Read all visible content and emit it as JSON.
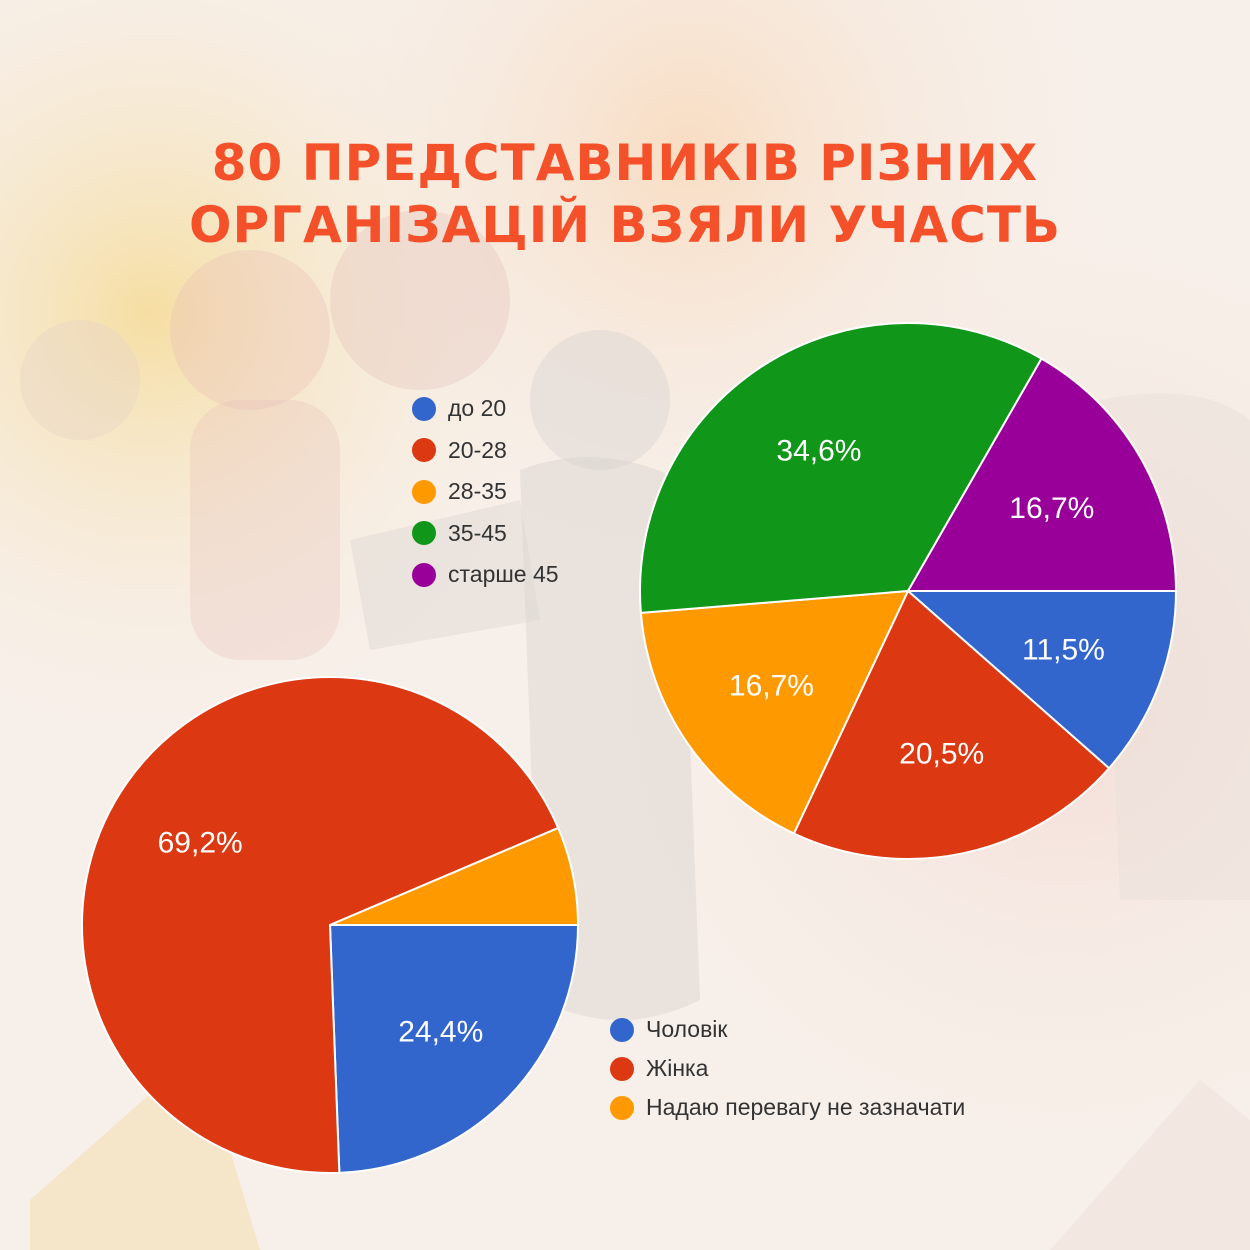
{
  "title": {
    "line1": "80 ПРЕДСТАВНИКІВ РІЗНИХ",
    "line2": "ОРГАНІЗАЦІЙ ВЗЯЛИ УЧАСТЬ"
  },
  "chart_data": [
    {
      "type": "pie",
      "categories": [
        "до 20",
        "20-28",
        "28-35",
        "35-45",
        "старше 45"
      ],
      "values": [
        11.5,
        20.5,
        16.7,
        34.6,
        16.7
      ],
      "labels": [
        "11,5%",
        "20,5%",
        "16,7%",
        "34,6%",
        "16,7%"
      ],
      "colors": [
        "#3366cc",
        "#dc3912",
        "#ff9900",
        "#109618",
        "#990099"
      ],
      "legend": "left"
    },
    {
      "type": "pie",
      "categories": [
        "Чоловік",
        "Жінка",
        "Надаю перевагу не зазначати"
      ],
      "values": [
        24.4,
        69.2,
        6.4
      ],
      "labels": [
        "24,4%",
        "69,2%",
        ""
      ],
      "colors": [
        "#3366cc",
        "#dc3912",
        "#ff9900"
      ],
      "legend": "bottom-right"
    }
  ]
}
